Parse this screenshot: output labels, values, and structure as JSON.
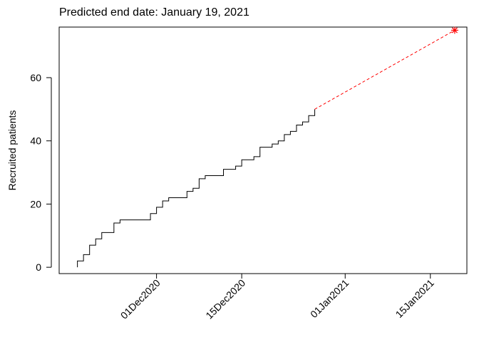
{
  "chart_data": {
    "type": "line",
    "title": "Predicted end date: January 19, 2021",
    "ylabel": "Recruited patients",
    "xlabel": "",
    "x_type": "date",
    "xlim": [
      "2020-11-15",
      "2021-01-21"
    ],
    "ylim": [
      -2,
      76
    ],
    "y_ticks": [
      0,
      20,
      40,
      60
    ],
    "x_ticks": [
      {
        "date": "2020-12-01",
        "label": "01Dec2020"
      },
      {
        "date": "2020-12-15",
        "label": "15Dec2020"
      },
      {
        "date": "2021-01-01",
        "label": "01Jan2021"
      },
      {
        "date": "2021-01-15",
        "label": "15Jan2021"
      }
    ],
    "grid": false,
    "series": [
      {
        "style": "step",
        "color": "#000000",
        "points": [
          {
            "x": "2020-11-18",
            "y": 0
          },
          {
            "x": "2020-11-18",
            "y": 2
          },
          {
            "x": "2020-11-19",
            "y": 4
          },
          {
            "x": "2020-11-20",
            "y": 7
          },
          {
            "x": "2020-11-21",
            "y": 9
          },
          {
            "x": "2020-11-22",
            "y": 11
          },
          {
            "x": "2020-11-24",
            "y": 14
          },
          {
            "x": "2020-11-25",
            "y": 15
          },
          {
            "x": "2020-11-30",
            "y": 17
          },
          {
            "x": "2020-12-01",
            "y": 19
          },
          {
            "x": "2020-12-02",
            "y": 21
          },
          {
            "x": "2020-12-03",
            "y": 22
          },
          {
            "x": "2020-12-06",
            "y": 24
          },
          {
            "x": "2020-12-07",
            "y": 25
          },
          {
            "x": "2020-12-08",
            "y": 28
          },
          {
            "x": "2020-12-09",
            "y": 29
          },
          {
            "x": "2020-12-12",
            "y": 31
          },
          {
            "x": "2020-12-14",
            "y": 32
          },
          {
            "x": "2020-12-15",
            "y": 34
          },
          {
            "x": "2020-12-17",
            "y": 35
          },
          {
            "x": "2020-12-18",
            "y": 38
          },
          {
            "x": "2020-12-20",
            "y": 39
          },
          {
            "x": "2020-12-21",
            "y": 40
          },
          {
            "x": "2020-12-22",
            "y": 42
          },
          {
            "x": "2020-12-23",
            "y": 43
          },
          {
            "x": "2020-12-24",
            "y": 45
          },
          {
            "x": "2020-12-25",
            "y": 46
          },
          {
            "x": "2020-12-26",
            "y": 48
          },
          {
            "x": "2020-12-27",
            "y": 50
          }
        ]
      },
      {
        "style": "dashed",
        "color": "#ff0000",
        "points": [
          {
            "x": "2020-12-27",
            "y": 50
          },
          {
            "x": "2021-01-19",
            "y": 75
          }
        ]
      }
    ],
    "annotations": [
      {
        "type": "star-marker",
        "x": "2021-01-19",
        "y": 75,
        "color": "#ff0000"
      }
    ]
  }
}
